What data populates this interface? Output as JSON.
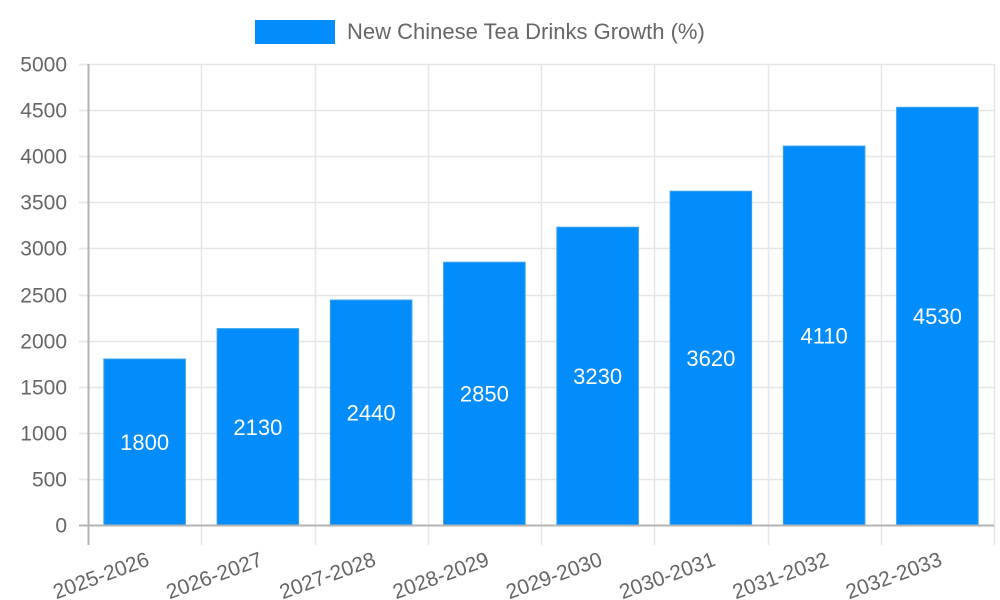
{
  "chart_data": {
    "type": "bar",
    "title": "",
    "legend": [
      {
        "label": "New Chinese Tea Drinks Growth (%)",
        "color": "#038cfc"
      }
    ],
    "legend_position": "top",
    "categories": [
      "2025-2026",
      "2026-2027",
      "2027-2028",
      "2028-2029",
      "2029-2030",
      "2030-2031",
      "2031-2032",
      "2032-2033"
    ],
    "series": [
      {
        "name": "New Chinese Tea Drinks Growth (%)",
        "values": [
          1800,
          2130,
          2440,
          2850,
          3230,
          3620,
          4110,
          4530
        ],
        "color": "#038cfc"
      }
    ],
    "data_labels": [
      "1800",
      "2130",
      "2440",
      "2850",
      "3230",
      "3620",
      "4110",
      "4530"
    ],
    "xlabel": "",
    "ylabel": "",
    "ylim": [
      0,
      5000
    ],
    "yticks": [
      0,
      500,
      1000,
      1500,
      2000,
      2500,
      3000,
      3500,
      4000,
      4500,
      5000
    ],
    "xtick_rotation": -20,
    "grid": true
  },
  "legend": {
    "label": "New Chinese Tea Drinks Growth (%)",
    "color": "#038cfc"
  },
  "colors": {
    "bar": "#038cfc",
    "bar_border": "#36a2eb",
    "grid": "#e5e5e5",
    "axis": "#b3b3b3",
    "tick_text": "#666666",
    "data_label_text": "#ffffff"
  }
}
